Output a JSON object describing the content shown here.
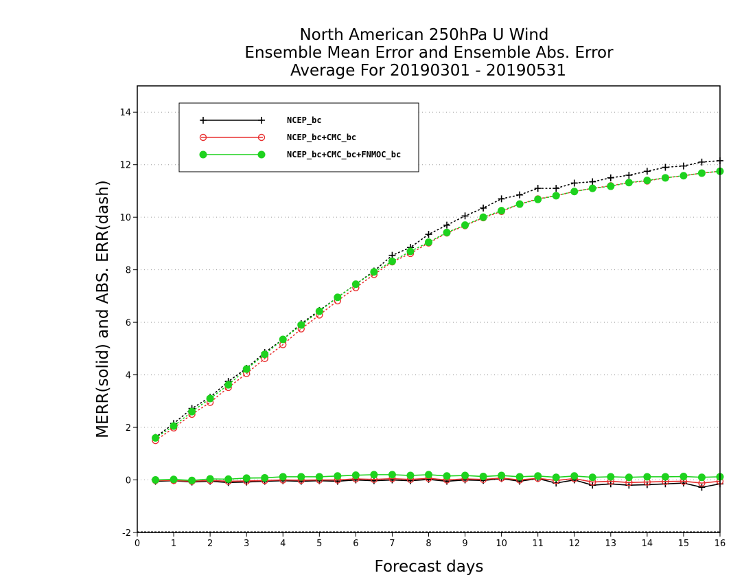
{
  "chart_data": {
    "type": "line",
    "title_lines": [
      "North American 250hPa U Wind",
      "Ensemble Mean Error and Ensemble Abs. Error",
      "Average For 20190301 - 20190531"
    ],
    "xlabel": "Forecast days",
    "ylabel": "MERR(solid) and ABS. ERR(dash)",
    "xlim": [
      0,
      16
    ],
    "ylim": [
      -2,
      15
    ],
    "xticks": [
      "0",
      "1",
      "2",
      "3",
      "4",
      "5",
      "6",
      "7",
      "8",
      "9",
      "10",
      "11",
      "12",
      "13",
      "14",
      "15",
      "16"
    ],
    "yticks": [
      "-2",
      "0",
      "2",
      "4",
      "6",
      "8",
      "10",
      "12",
      "14"
    ],
    "grid": "horizontal dotted",
    "legend_position": "top-left",
    "x": [
      0.5,
      1,
      1.5,
      2,
      2.5,
      3,
      3.5,
      4,
      4.5,
      5,
      5.5,
      6,
      6.5,
      7,
      7.5,
      8,
      8.5,
      9,
      9.5,
      10,
      10.5,
      11,
      11.5,
      12,
      12.5,
      13,
      13.5,
      14,
      14.5,
      15,
      15.5,
      16
    ],
    "series": [
      {
        "name": "NCEP_bc",
        "marker": "plus",
        "color": "#000000",
        "abs_err": [
          1.62,
          2.15,
          2.72,
          3.15,
          3.75,
          4.25,
          4.85,
          5.35,
          5.95,
          6.45,
          6.95,
          7.45,
          7.95,
          8.55,
          8.85,
          9.35,
          9.7,
          10.05,
          10.35,
          10.7,
          10.85,
          11.1,
          11.1,
          11.3,
          11.35,
          11.5,
          11.6,
          11.75,
          11.9,
          11.95,
          12.1,
          12.15
        ],
        "mean_err": [
          -0.05,
          -0.03,
          -0.08,
          -0.05,
          -0.1,
          -0.08,
          -0.05,
          -0.03,
          -0.05,
          -0.03,
          -0.05,
          0.0,
          -0.03,
          0.0,
          -0.03,
          0.02,
          -0.05,
          0.0,
          -0.02,
          0.05,
          -0.05,
          0.05,
          -0.12,
          0.0,
          -0.2,
          -0.15,
          -0.2,
          -0.18,
          -0.15,
          -0.12,
          -0.28,
          -0.15
        ]
      },
      {
        "name": "NCEP_bc+CMC_bc",
        "marker": "open-circle",
        "color": "#e83030",
        "abs_err": [
          1.5,
          1.98,
          2.5,
          2.95,
          3.52,
          4.05,
          4.62,
          5.15,
          5.75,
          6.28,
          6.82,
          7.32,
          7.82,
          8.3,
          8.62,
          9.02,
          9.4,
          9.68,
          9.98,
          10.22,
          10.5,
          10.7,
          10.82,
          10.98,
          11.1,
          11.2,
          11.32,
          11.38,
          11.5,
          11.58,
          11.68,
          11.75
        ],
        "mean_err": [
          -0.02,
          -0.02,
          -0.05,
          -0.02,
          -0.05,
          -0.04,
          -0.02,
          0.0,
          -0.01,
          0.0,
          0.0,
          0.04,
          0.02,
          0.05,
          0.02,
          0.06,
          0.0,
          0.04,
          0.02,
          0.07,
          0.0,
          0.06,
          -0.02,
          0.05,
          -0.08,
          -0.05,
          -0.1,
          -0.08,
          -0.06,
          -0.05,
          -0.12,
          -0.05
        ]
      },
      {
        "name": "NCEP_bc+CMC_bc+FNMOC_bc",
        "marker": "filled-circle",
        "color": "#1ed21e",
        "abs_err": [
          1.6,
          2.05,
          2.6,
          3.1,
          3.62,
          4.22,
          4.78,
          5.35,
          5.9,
          6.42,
          6.95,
          7.45,
          7.92,
          8.32,
          8.7,
          9.05,
          9.42,
          9.7,
          10.0,
          10.25,
          10.5,
          10.68,
          10.82,
          10.98,
          11.1,
          11.18,
          11.32,
          11.4,
          11.5,
          11.58,
          11.68,
          11.75
        ],
        "mean_err": [
          0.0,
          0.02,
          -0.02,
          0.04,
          0.03,
          0.07,
          0.08,
          0.12,
          0.12,
          0.12,
          0.15,
          0.18,
          0.2,
          0.2,
          0.17,
          0.2,
          0.15,
          0.17,
          0.13,
          0.17,
          0.12,
          0.15,
          0.1,
          0.15,
          0.1,
          0.12,
          0.1,
          0.12,
          0.12,
          0.13,
          0.1,
          0.12
        ]
      }
    ]
  }
}
